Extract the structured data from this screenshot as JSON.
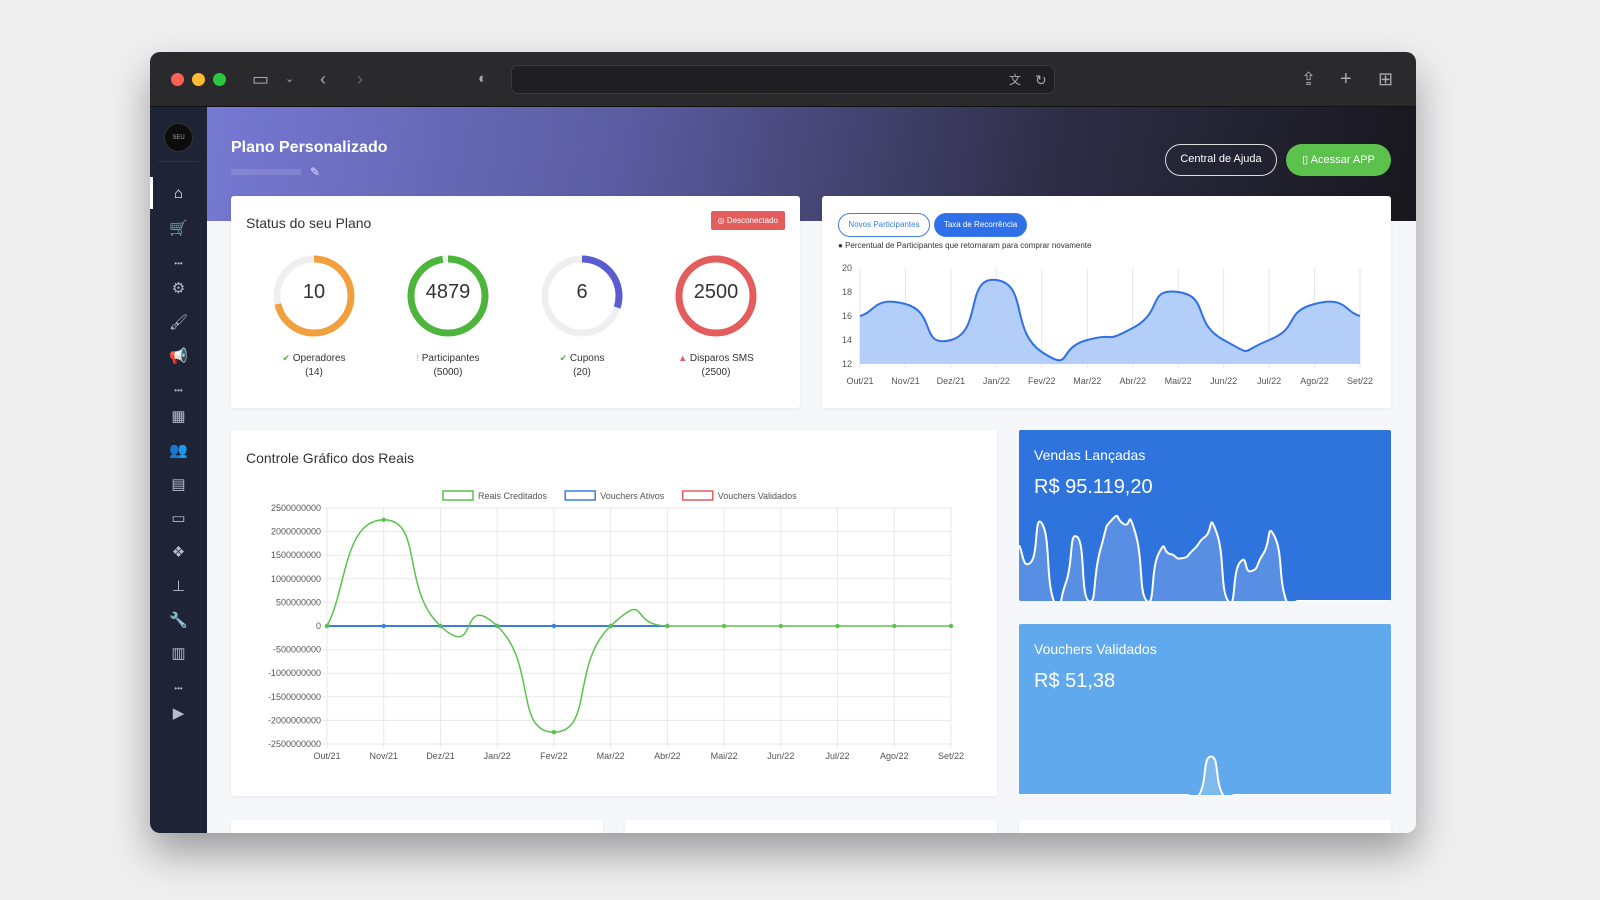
{
  "browser": {
    "url": "",
    "icons": [
      "sidebar-toggle-icon",
      "chevron-down-icon",
      "back-icon",
      "forward-icon",
      "shield-icon",
      "translate-icon",
      "reload-icon",
      "share-icon",
      "new-tab-icon",
      "tab-overview-icon"
    ]
  },
  "sidebar": {
    "logo_text": "SEU ESTILO",
    "items": [
      "home",
      "cart",
      "more",
      "settings",
      "brush",
      "megaphone",
      "more",
      "calculator",
      "users",
      "store",
      "ticket",
      "cubes",
      "sitemap",
      "wrench",
      "chart",
      "more",
      "google-play",
      "apple"
    ]
  },
  "header": {
    "title": "Plano Personalizado",
    "help_label": "Central de Ajuda",
    "app_label": "Acessar APP"
  },
  "plan_status": {
    "title": "Status do seu Plano",
    "status_badge": "Desconectado",
    "colors": {
      "badge": "#e35d5d"
    },
    "gauges": [
      {
        "value": "10",
        "label": "Operadores",
        "limit": "(14)",
        "fraction": 0.714,
        "color": "#f2a03d",
        "status": "ok"
      },
      {
        "value": "4879",
        "label": "Participantes",
        "limit": "(5000)",
        "fraction": 0.976,
        "color": "#4db53c",
        "status": "warning"
      },
      {
        "value": "6",
        "label": "Cupons",
        "limit": "(20)",
        "fraction": 0.3,
        "color": "#5a5ccf",
        "status": "ok"
      },
      {
        "value": "2500",
        "label": "Disparos SMS",
        "limit": "(2500)",
        "fraction": 1.0,
        "color": "#e35d5d",
        "status": "danger"
      }
    ]
  },
  "recurrence": {
    "tabs": [
      {
        "label": "Novos Participantes",
        "active": false
      },
      {
        "label": "Taxa de Recorrência",
        "active": true
      }
    ],
    "note": "Percentual de Participantes que retornaram para comprar novamente"
  },
  "controle": {
    "title": "Controle Gráfico dos Reais"
  },
  "vendas": {
    "title": "Vendas Lançadas",
    "value": "R$ 95.119,20",
    "color": "#2f73dd"
  },
  "vouchers": {
    "title": "Vouchers Validados",
    "value": "R$ 51,38",
    "color": "#5fa9ec"
  },
  "chart_data": [
    {
      "type": "area",
      "title": "Taxa de Recorrência",
      "categories": [
        "Out/21",
        "Nov/21",
        "Dez/21",
        "Jan/22",
        "Fev/22",
        "Mar/22",
        "Abr/22",
        "Mai/22",
        "Jun/22",
        "Jul/22",
        "Ago/22",
        "Set/22"
      ],
      "values": [
        16,
        17,
        14,
        19,
        13,
        14,
        15,
        18,
        14,
        14,
        17,
        16
      ],
      "ylim": [
        12,
        20
      ],
      "yticks": [
        "12",
        "14",
        "16",
        "18",
        "20"
      ],
      "color": "#2f6fe8",
      "fill": "#aecbf9"
    },
    {
      "type": "line",
      "title": "Controle Gráfico dos Reais",
      "categories": [
        "Out/21",
        "Nov/21",
        "Dez/21",
        "Jan/22",
        "Fev/22",
        "Mar/22",
        "Abr/22",
        "Mai/22",
        "Jun/22",
        "Jul/22",
        "Ago/22",
        "Set/22"
      ],
      "ylim": [
        -2500000000,
        2500000000
      ],
      "yticks": [
        "2500000000",
        "2000000000",
        "1500000000",
        "1000000000",
        "500000000",
        "0",
        "-500000000",
        "-1000000000",
        "-1500000000",
        "-2000000000",
        "-2500000000"
      ],
      "legend_position": "top",
      "series": [
        {
          "name": "Reais Creditados",
          "color": "#5cc14d",
          "values": [
            0,
            2250000000,
            0,
            0,
            -2250000000,
            0,
            0,
            0,
            0,
            0,
            0,
            0
          ]
        },
        {
          "name": "Vouchers Ativos",
          "color": "#3b7de0",
          "values": [
            0,
            0,
            0,
            0,
            0,
            0,
            0,
            null,
            null,
            null,
            null,
            null
          ]
        },
        {
          "name": "Vouchers Validados",
          "color": "#e35d5d",
          "values": [
            null,
            null,
            null,
            null,
            null,
            null,
            null,
            null,
            null,
            null,
            null,
            null
          ]
        }
      ]
    },
    {
      "type": "area",
      "title": "Vendas Lançadas sparkline",
      "values": [
        0.65,
        0.45,
        0.9,
        0,
        0.2,
        0.75,
        0,
        0.6,
        0.95,
        0.9,
        0.8,
        0,
        0.55,
        0.55,
        0.5,
        0.6,
        0.75,
        0.8,
        0,
        0.45,
        0.35,
        0.55,
        0.75,
        0,
        0,
        0,
        0,
        0,
        0,
        0,
        0,
        0,
        0
      ]
    },
    {
      "type": "area",
      "title": "Vouchers Validados sparkline",
      "values": [
        0,
        0,
        0,
        0,
        0,
        0,
        0,
        0,
        0,
        0,
        0,
        0,
        0,
        0,
        0,
        0,
        0.45,
        0,
        0,
        0,
        0,
        0,
        0,
        0,
        0,
        0,
        0,
        0,
        0,
        0,
        0,
        0
      ]
    }
  ]
}
